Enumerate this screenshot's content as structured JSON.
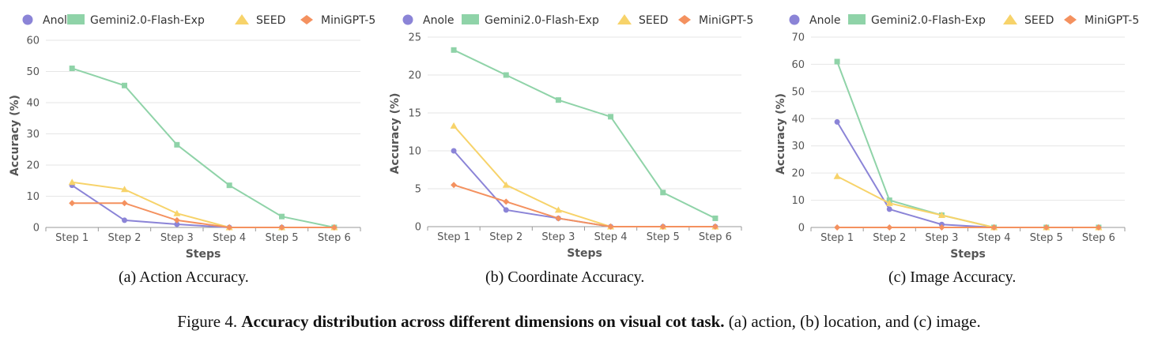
{
  "colors": {
    "Anole": "#8b84d7",
    "Gemini2.0-Flash-Exp": "#8fd3a8",
    "SEED": "#f7d36a",
    "MiniGPT-5": "#f4915f",
    "grid": "#e6e6e6",
    "axis": "#999999"
  },
  "chart_data": [
    {
      "type": "line",
      "caption": "(a) Action Accuracy.",
      "xlabel": "Steps",
      "ylabel": "Accuracy (%)",
      "ylim": [
        0,
        60
      ],
      "yticks": [
        "0",
        "10",
        "20",
        "30",
        "40",
        "50",
        "60"
      ],
      "categories": [
        "Step 1",
        "Step 2",
        "Step 3",
        "Step 4",
        "Step 5",
        "Step 6"
      ],
      "series": [
        {
          "name": "Anole",
          "marker": "circle",
          "values": [
            13.5,
            2.3,
            1.0,
            0,
            0,
            0
          ]
        },
        {
          "name": "Gemini2.0-Flash-Exp",
          "marker": "square",
          "values": [
            51,
            45.5,
            26.5,
            13.5,
            3.5,
            0
          ]
        },
        {
          "name": "SEED",
          "marker": "triangle",
          "values": [
            14.5,
            12.2,
            4.5,
            0,
            0,
            0
          ]
        },
        {
          "name": "MiniGPT-5",
          "marker": "diamond",
          "values": [
            7.8,
            7.8,
            2.3,
            0,
            0,
            0
          ]
        }
      ]
    },
    {
      "type": "line",
      "caption": "(b) Coordinate Accuracy.",
      "xlabel": "Steps",
      "ylabel": "Accuracy (%)",
      "ylim": [
        0,
        25
      ],
      "yticks": [
        "0",
        "5",
        "10",
        "15",
        "20",
        "25"
      ],
      "categories": [
        "Step 1",
        "Step 2",
        "Step 3",
        "Step 4",
        "Step 5",
        "Step 6"
      ],
      "series": [
        {
          "name": "Anole",
          "marker": "circle",
          "values": [
            10,
            2.2,
            1.1,
            0,
            0,
            0
          ]
        },
        {
          "name": "Gemini2.0-Flash-Exp",
          "marker": "square",
          "values": [
            23.3,
            20,
            16.7,
            14.5,
            4.5,
            1.1
          ]
        },
        {
          "name": "SEED",
          "marker": "triangle",
          "values": [
            13.3,
            5.5,
            2.2,
            0,
            0,
            0
          ]
        },
        {
          "name": "MiniGPT-5",
          "marker": "diamond",
          "values": [
            5.5,
            3.3,
            1.1,
            0,
            0,
            0
          ]
        }
      ]
    },
    {
      "type": "line",
      "caption": "(c) Image Accuracy.",
      "xlabel": "Steps",
      "ylabel": "Accuracy (%)",
      "ylim": [
        0,
        70
      ],
      "yticks": [
        "0",
        "10",
        "20",
        "30",
        "40",
        "50",
        "60",
        "70"
      ],
      "categories": [
        "Step 1",
        "Step 2",
        "Step 3",
        "Step 4",
        "Step 5",
        "Step 6"
      ],
      "series": [
        {
          "name": "Anole",
          "marker": "circle",
          "values": [
            38.8,
            6.7,
            1.1,
            0,
            0,
            0
          ]
        },
        {
          "name": "Gemini2.0-Flash-Exp",
          "marker": "square",
          "values": [
            61,
            10,
            4.5,
            0,
            0,
            0
          ]
        },
        {
          "name": "SEED",
          "marker": "triangle",
          "values": [
            18.8,
            8.9,
            4.5,
            0,
            0,
            0
          ]
        },
        {
          "name": "MiniGPT-5",
          "marker": "diamond",
          "values": [
            0,
            0,
            0,
            0,
            0,
            0
          ]
        }
      ]
    }
  ],
  "figure_caption": {
    "prefix": "Figure 4. ",
    "bold": "Accuracy distribution across different dimensions on visual cot task.",
    "rest": " (a) action, (b) location, and (c) image."
  }
}
